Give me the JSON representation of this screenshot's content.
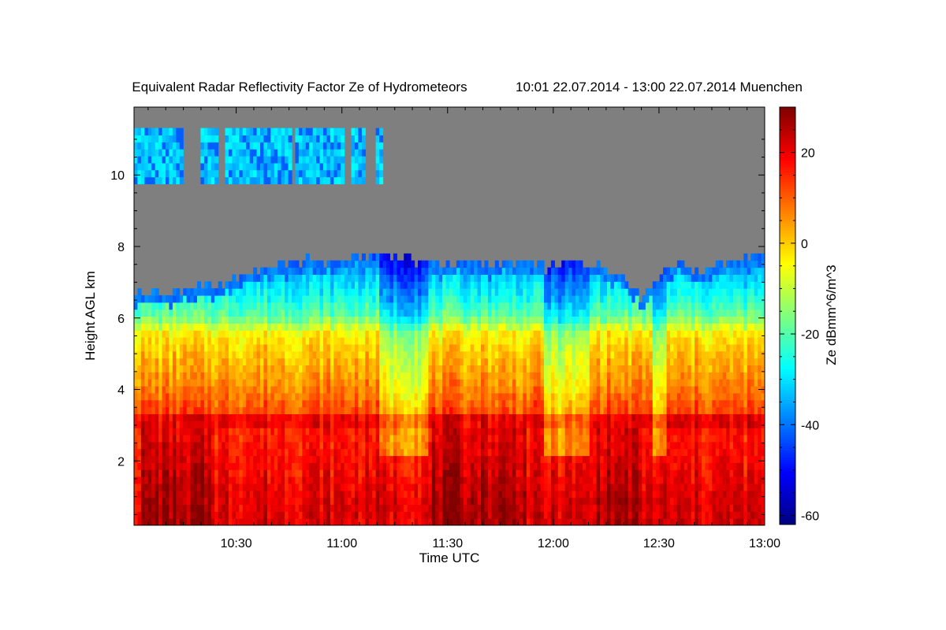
{
  "chart_data": {
    "type": "heatmap",
    "title": "Equivalent Radar Reflectivity Factor Ze of Hydrometeors",
    "time_range_label": "10:01 22.07.2014 - 13:00 22.07.2014 Muenchen",
    "xlabel": "Time UTC",
    "ylabel": "Height AGL km",
    "colorbar_label": "Ze dBmm^6/m^3",
    "x_tick_labels": [
      "10:30",
      "11:00",
      "11:30",
      "12:00",
      "12:30",
      "13:00"
    ],
    "x_tick_values_min": [
      630,
      660,
      690,
      720,
      750,
      780
    ],
    "xlim_min": [
      601,
      780
    ],
    "y_tick_labels": [
      "2",
      "4",
      "6",
      "8",
      "10"
    ],
    "y_tick_values": [
      2,
      4,
      6,
      8,
      10
    ],
    "ylim": [
      0.2,
      11.9
    ],
    "zlim": [
      -62,
      30
    ],
    "colorbar_tick_labels": [
      "20",
      "0",
      "-20",
      "-40",
      "-60"
    ],
    "colorbar_tick_values": [
      20,
      0,
      -20,
      -40,
      -60
    ],
    "colormap": "jet",
    "no_signal_color": "#7f7f7f",
    "melting_layer_height_km": 3.15,
    "echo_top_km": [
      [
        601,
        6.7
      ],
      [
        610,
        6.7
      ],
      [
        618,
        6.8
      ],
      [
        625,
        6.9
      ],
      [
        633,
        7.3
      ],
      [
        640,
        7.4
      ],
      [
        648,
        7.6
      ],
      [
        656,
        7.6
      ],
      [
        664,
        7.7
      ],
      [
        672,
        7.8
      ],
      [
        680,
        7.6
      ],
      [
        688,
        7.5
      ],
      [
        695,
        7.6
      ],
      [
        703,
        7.5
      ],
      [
        710,
        7.6
      ],
      [
        718,
        7.4
      ],
      [
        725,
        7.6
      ],
      [
        733,
        7.5
      ],
      [
        740,
        7.2
      ],
      [
        745,
        6.6
      ],
      [
        750,
        7.2
      ],
      [
        756,
        7.6
      ],
      [
        762,
        7.3
      ],
      [
        770,
        7.6
      ],
      [
        780,
        7.8
      ]
    ],
    "cirrus_layer_km": [
      9.8,
      11.3
    ],
    "cirrus_segments_min": [
      [
        601,
        615
      ],
      [
        620,
        625
      ],
      [
        627,
        646
      ],
      [
        647,
        661
      ],
      [
        663,
        667
      ],
      [
        670,
        672
      ]
    ],
    "reflectivity_profile_dbz": [
      [
        0.2,
        22
      ],
      [
        1.0,
        21
      ],
      [
        2.0,
        18
      ],
      [
        2.8,
        16
      ],
      [
        3.15,
        23
      ],
      [
        3.4,
        12
      ],
      [
        4.0,
        7
      ],
      [
        5.0,
        1
      ],
      [
        5.6,
        -4
      ],
      [
        6.0,
        -17
      ],
      [
        6.6,
        -26
      ],
      [
        7.2,
        -33
      ],
      [
        7.8,
        -42
      ]
    ],
    "clear_gaps_min": [
      [
        671,
        685
      ],
      [
        717,
        730
      ],
      [
        748,
        752
      ]
    ],
    "rain_core_min": [
      [
        603,
        615
      ],
      [
        617,
        624
      ],
      [
        686,
        698
      ],
      [
        698,
        712
      ],
      [
        732,
        744
      ]
    ],
    "grid": false
  }
}
